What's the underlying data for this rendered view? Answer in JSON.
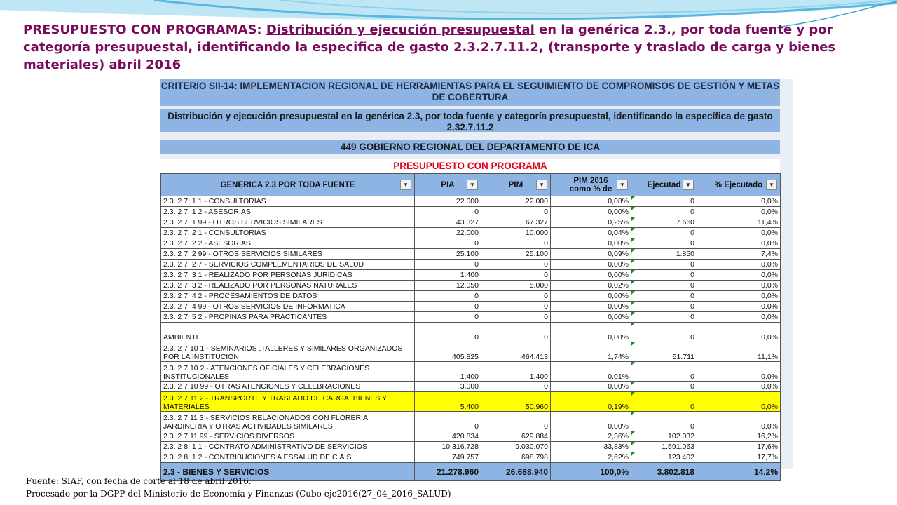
{
  "title": {
    "bold_prefix": "PRESUPUESTO CON PROGRAMAS:",
    "underlined": "Distribución y ejecución presupuestal",
    "rest": "en la genérica 2.3., por toda fuente y por categoría presupuestal, identificando la especifica  de gasto 2.3.2.7.11.2, (transporte y traslado de carga y bienes materiales) abril 2016"
  },
  "sheet": {
    "band1": "CRITERIO SII-14: IMPLEMENTACION REGIONAL DE HERRAMIENTAS PARA EL SEGUIMIENTO DE COMPROMISOS DE GESTIÓN Y METAS DE COBERTURA",
    "band2": "Distribución y ejecución presupuestal en la genérica 2.3, por toda fuente y categoría presupuestal, identificando la específica de gasto 2.32.7.11.2",
    "band3": "449 GOBIERNO REGIONAL DEL DEPARTAMENTO DE ICA",
    "subtitle": "PRESUPUESTO CON PROGRAMA",
    "headers": [
      "GENERICA 2.3  POR TODA FUENTE",
      "PIA",
      "PIM",
      "PIM 2016 como % de",
      "Ejecutad",
      "% Ejecutado"
    ],
    "filter_glyph": "▼",
    "rows": [
      {
        "label": "2.3. 2  7. 1 1 - CONSULTORIAS",
        "pia": "22.000",
        "pim": "22.000",
        "pct": "0,08%",
        "ejec": "0",
        "pej": "0,0%"
      },
      {
        "label": "2.3. 2  7. 1 2 - ASESORIAS",
        "pia": "0",
        "pim": "0",
        "pct": "0,00%",
        "ejec": "0",
        "pej": "0,0%"
      },
      {
        "label": "2.3. 2  7. 1 99 - OTROS SERVICIOS SIMILARES",
        "pia": "43.327",
        "pim": "67.327",
        "pct": "0,25%",
        "ejec": "7.660",
        "pej": "11,4%"
      },
      {
        "label": "2.3. 2  7. 2  1 - CONSULTORIAS",
        "pia": "22.000",
        "pim": "10.000",
        "pct": "0,04%",
        "ejec": "0",
        "pej": "0,0%"
      },
      {
        "label": "2.3. 2  7. 2  2 - ASESORIAS",
        "pia": "0",
        "pim": "0",
        "pct": "0,00%",
        "ejec": "0",
        "pej": "0,0%"
      },
      {
        "label": "2.3. 2  7. 2 99 - OTROS SERVICIOS SIMILARES",
        "pia": "25.100",
        "pim": "25.100",
        "pct": "0,09%",
        "ejec": "1.850",
        "pej": "7,4%"
      },
      {
        "label": "2.3. 2  7. 2  7 - SERVICIOS COMPLEMENTARIOS DE SALUD",
        "pia": "0",
        "pim": "0",
        "pct": "0,00%",
        "ejec": "0",
        "pej": "0,0%"
      },
      {
        "label": "2.3. 2  7. 3  1 - REALIZADO POR PERSONAS JURIDICAS",
        "pia": "1.400",
        "pim": "0",
        "pct": "0,00%",
        "ejec": "0",
        "pej": "0,0%"
      },
      {
        "label": "2.3. 2  7. 3  2 - REALIZADO POR PERSONAS NATURALES",
        "pia": "12.050",
        "pim": "5.000",
        "pct": "0,02%",
        "ejec": "0",
        "pej": "0,0%"
      },
      {
        "label": "2.3. 2  7. 4  2 - PROCESAMIENTOS DE DATOS",
        "pia": "0",
        "pim": "0",
        "pct": "0,00%",
        "ejec": "0",
        "pej": "0,0%"
      },
      {
        "label": "2.3. 2  7. 4 99 - OTROS SERVICIOS DE INFORMATICA",
        "pia": "0",
        "pim": "0",
        "pct": "0,00%",
        "ejec": "0",
        "pej": "0,0%"
      },
      {
        "label": "2.3. 2  7. 5  2 - PROPINAS PARA PRACTICANTES",
        "pia": "0",
        "pim": "0",
        "pct": "0,00%",
        "ejec": "0",
        "pej": "0,0%"
      },
      {
        "label": "AMBIENTE",
        "pia": "0",
        "pim": "0",
        "pct": "0,00%",
        "ejec": "0",
        "pej": "0,0%",
        "tall": true
      },
      {
        "label": "2.3. 2  7.10  1 - SEMINARIOS ,TALLERES Y SIMILARES ORGANIZADOS POR LA  INSTITUCION",
        "pia": "405.825",
        "pim": "464.413",
        "pct": "1,74%",
        "ejec": "51.711",
        "pej": "11,1%",
        "tall": true
      },
      {
        "label": "2.3. 2  7.10  2 - ATENCIONES OFICIALES Y CELEBRACIONES INSTITUCIONALES",
        "pia": "1.400",
        "pim": "1.400",
        "pct": "0,01%",
        "ejec": "0",
        "pej": "0,0%",
        "tall": true
      },
      {
        "label": "2.3. 2  7.10 99 - OTRAS ATENCIONES Y CELEBRACIONES",
        "pia": "3.000",
        "pim": "0",
        "pct": "0,00%",
        "ejec": "0",
        "pej": "0,0%"
      },
      {
        "label": "2.3. 2  7.11  2 - TRANSPORTE Y TRASLADO DE CARGA, BIENES Y MATERIALES",
        "pia": "5.400",
        "pim": "50.960",
        "pct": "0,19%",
        "ejec": "0",
        "pej": "0,0%",
        "tall": true,
        "highlight": true
      },
      {
        "label": "2.3. 2  7.11  3 - SERVICIOS RELACIONADOS CON FLORERIA, JARDINERIA Y OTRAS ACTIVIDADES SIMILARES",
        "pia": "0",
        "pim": "0",
        "pct": "0,00%",
        "ejec": "0",
        "pej": "0,0%",
        "tall": true
      },
      {
        "label": "2.3. 2  7.11 99 - SERVICIOS DIVERSOS",
        "pia": "420.834",
        "pim": "629.884",
        "pct": "2,36%",
        "ejec": "102.032",
        "pej": "16,2%"
      },
      {
        "label": "2.3. 2  8. 1  1 - CONTRATO ADMINISTRATIVO DE SERVICIOS",
        "pia": "10.316.728",
        "pim": "9.030.070",
        "pct": "33,83%",
        "ejec": "1.591.063",
        "pej": "17,6%"
      },
      {
        "label": "2.3. 2  8. 1  2 - CONTRIBUCIONES A ESSALUD DE C.A.S.",
        "pia": "749.757",
        "pim": "698.798",
        "pct": "2,62%",
        "ejec": "123.402",
        "pej": "17,7%"
      }
    ],
    "total": {
      "label": "2.3 - BIENES Y SERVICIOS",
      "pia": "21.278.960",
      "pim": "26.688.940",
      "pct": "100,0%",
      "ejec": "3.802.818",
      "pej": "14,2%"
    }
  },
  "source": {
    "line1": "Fuente: SIAF, con fecha de corte al 18 de abril 2016.",
    "line2": "Procesado por la DGPP del Ministerio de Economía y Finanzas (Cubo eje2016(27_04_2016_SALUD)"
  }
}
